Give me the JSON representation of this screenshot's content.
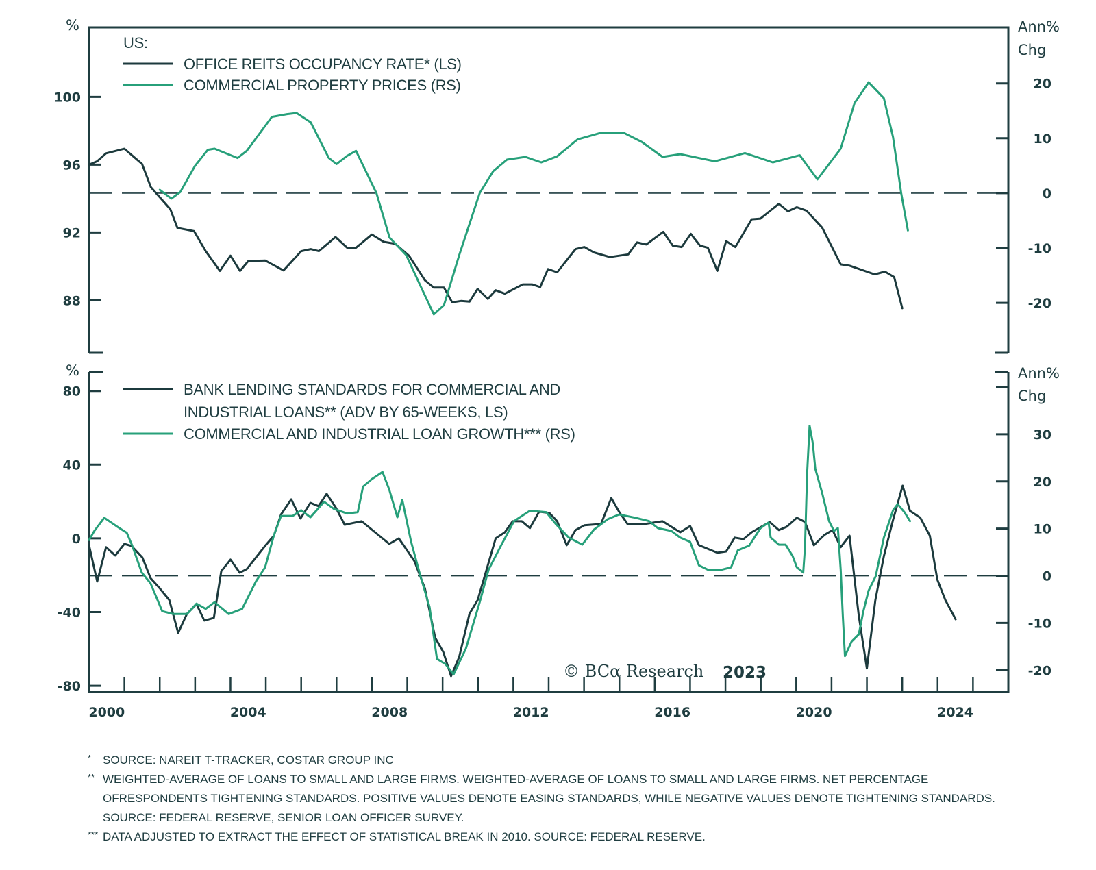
{
  "colors": {
    "dark": "#1c3a3d",
    "green": "#27a07a",
    "axis": "#1f3d40"
  },
  "watermark": {
    "text": "© BCα Research",
    "year": "2023"
  },
  "footnotes": [
    {
      "mark": "*",
      "text": "SOURCE: NAREIT T-TRACKER, COSTAR GROUP INC"
    },
    {
      "mark": "**",
      "text": "WEIGHTED-AVERAGE OF LOANS TO SMALL AND LARGE FIRMS. WEIGHTED-AVERAGE OF LOANS TO SMALL AND LARGE FIRMS. NET PERCENTAGE OFRESPONDENTS TIGHTENING STANDARDS. POSITIVE VALUES DENOTE EASING STANDARDS, WHILE NEGATIVE VALUES DENOTE TIGHTENING STANDARDS. SOURCE: FEDERAL RESERVE, SENIOR LOAN OFFICER SURVEY."
    },
    {
      "mark": "***",
      "text": "DATA ADJUSTED TO EXTRACT THE EFFECT OF STATISTICAL BREAK IN 2010. SOURCE: FEDERAL RESERVE."
    }
  ],
  "chart_data": [
    {
      "type": "line",
      "panel": "top",
      "title": "US:",
      "xlabel": "",
      "ylabel_left": "%",
      "ylabel_right": [
        "Ann%",
        "Chg"
      ],
      "xlim": [
        2000,
        2026
      ],
      "ylim_left": [
        84.9,
        104.1
      ],
      "ylim_right": [
        -29.1,
        30.2
      ],
      "yticks_left": [
        88,
        92,
        96,
        100
      ],
      "yticks_right": [
        -20,
        -10,
        0,
        10,
        20
      ],
      "reference_line_right": 0,
      "legend_position": "top-left",
      "series": [
        {
          "name": "OFFICE REITS OCCUPANCY RATE* (LS)",
          "axis": "left",
          "color": "dark",
          "x": [
            2000.0,
            2000.23,
            2000.48,
            2001.0,
            2001.5,
            2001.75,
            2002.3,
            2002.5,
            2002.97,
            2003.3,
            2003.7,
            2004.0,
            2004.27,
            2004.5,
            2004.98,
            2005.5,
            2006.0,
            2006.27,
            2006.5,
            2006.97,
            2007.3,
            2007.55,
            2008.0,
            2008.33,
            2008.66,
            2009.05,
            2009.5,
            2009.75,
            2010.04,
            2010.27,
            2010.52,
            2010.76,
            2010.99,
            2011.28,
            2011.5,
            2011.76,
            2012.27,
            2012.53,
            2012.76,
            2012.98,
            2013.24,
            2013.76,
            2014.01,
            2014.28,
            2014.73,
            2015.25,
            2015.5,
            2015.76,
            2016.24,
            2016.51,
            2016.76,
            2017.02,
            2017.28,
            2017.5,
            2017.77,
            2018.02,
            2018.28,
            2018.74,
            2018.99,
            2019.51,
            2019.77,
            2020.02,
            2020.29,
            2020.74,
            2021.26,
            2021.51,
            2022.22,
            2022.51,
            2022.77,
            2023.0
          ],
          "values": [
            96.0,
            96.2,
            96.67,
            96.94,
            96.04,
            94.67,
            93.37,
            92.27,
            92.08,
            90.9,
            89.73,
            90.63,
            89.73,
            90.31,
            90.35,
            89.76,
            90.9,
            91.02,
            90.9,
            91.73,
            91.1,
            91.1,
            91.88,
            91.45,
            91.33,
            90.63,
            89.18,
            88.75,
            88.75,
            87.88,
            87.96,
            87.92,
            88.67,
            88.08,
            88.59,
            88.39,
            88.94,
            88.94,
            88.78,
            89.84,
            89.65,
            91.02,
            91.14,
            90.82,
            90.55,
            90.71,
            91.41,
            91.29,
            92.04,
            91.22,
            91.14,
            91.92,
            91.22,
            91.1,
            89.73,
            91.49,
            91.14,
            92.78,
            92.82,
            93.69,
            93.25,
            93.49,
            93.29,
            92.27,
            90.12,
            90.04,
            89.53,
            89.69,
            89.37,
            87.53
          ]
        },
        {
          "name": "COMMERCIAL PROPERTY PRICES (RS)",
          "axis": "right",
          "color": "green",
          "x": [
            2002.0,
            2002.33,
            2002.58,
            2003.0,
            2003.36,
            2003.55,
            2004.2,
            2004.46,
            2005.17,
            2005.6,
            2005.87,
            2006.27,
            2006.78,
            2007.0,
            2007.3,
            2007.55,
            2008.13,
            2008.5,
            2008.97,
            2009.36,
            2009.75,
            2010.04,
            2010.47,
            2011.05,
            2011.43,
            2011.82,
            2012.34,
            2012.79,
            2013.24,
            2013.82,
            2014.48,
            2015.12,
            2015.64,
            2016.22,
            2016.72,
            2017.7,
            2018.55,
            2019.34,
            2020.1,
            2020.6,
            2021.26,
            2021.65,
            2022.05,
            2022.48,
            2022.74,
            2022.97,
            2023.16
          ],
          "values": [
            0.6,
            -1.0,
            0.2,
            5.0,
            7.9,
            8.1,
            6.4,
            7.7,
            13.9,
            14.4,
            14.6,
            12.9,
            6.4,
            5.3,
            6.8,
            7.7,
            0.0,
            -8.1,
            -11.3,
            -16.7,
            -22.1,
            -20.4,
            -11.3,
            0.0,
            4.0,
            6.1,
            6.6,
            5.6,
            6.7,
            9.8,
            11.0,
            11.0,
            9.3,
            6.6,
            7.1,
            5.8,
            7.3,
            5.6,
            6.9,
            2.5,
            8.1,
            16.4,
            20.2,
            17.3,
            10.2,
            0.0,
            -6.8
          ]
        }
      ]
    },
    {
      "type": "line",
      "panel": "bottom",
      "xlabel": "",
      "ylabel_left": "%",
      "ylabel_right": [
        "Ann%",
        "Chg"
      ],
      "xlim": [
        2000,
        2026
      ],
      "xticks": [
        2000,
        2004,
        2008,
        2012,
        2016,
        2020,
        2024
      ],
      "ylim_left": [
        -83.3,
        90.3
      ],
      "ylim_right": [
        -24.6,
        43.2
      ],
      "yticks_left": [
        -80,
        -40,
        0,
        40,
        80
      ],
      "yticks_right": [
        -20,
        -10,
        0,
        10,
        20,
        30
      ],
      "reference_line_right": 0,
      "legend_position": "top-left",
      "series": [
        {
          "name": "BANK LENDING STANDARDS FOR COMMERCIAL AND INDUSTRIAL LOANS** (ADV BY 65-WEEKS, LS)",
          "axis": "left",
          "color": "dark",
          "x": [
            2000.0,
            2000.23,
            2000.48,
            2000.74,
            2001.0,
            2001.2,
            2001.51,
            2001.74,
            2002.0,
            2002.27,
            2002.52,
            2002.77,
            2003.04,
            2003.26,
            2003.53,
            2003.74,
            2004.0,
            2004.26,
            2004.46,
            2004.98,
            2005.23,
            2005.43,
            2005.72,
            2005.98,
            2006.26,
            2006.49,
            2006.72,
            2006.98,
            2007.23,
            2007.71,
            2008.49,
            2008.76,
            2009.2,
            2009.5,
            2009.79,
            2010.02,
            2010.24,
            2010.47,
            2010.76,
            2010.99,
            2011.24,
            2011.5,
            2011.76,
            2011.98,
            2012.24,
            2012.47,
            2012.73,
            2013.02,
            2013.24,
            2013.51,
            2013.76,
            2014.01,
            2014.48,
            2014.77,
            2014.99,
            2015.23,
            2015.71,
            2016.22,
            2016.72,
            2017.0,
            2017.25,
            2017.77,
            2018.02,
            2018.26,
            2018.51,
            2018.74,
            2019.25,
            2019.51,
            2019.73,
            2020.02,
            2020.25,
            2020.5,
            2020.8,
            2021.03,
            2021.26,
            2021.51,
            2021.77,
            2022.0,
            2022.24,
            2022.48,
            2022.74,
            2023.01,
            2023.22,
            2023.51,
            2023.78,
            2023.99,
            2024.22,
            2024.51
          ],
          "values": [
            -3.7,
            -23.4,
            -4.8,
            -9.3,
            -3.0,
            -4.1,
            -10.4,
            -21.6,
            -27.1,
            -33.5,
            -51.3,
            -40.9,
            -35.7,
            -44.6,
            -43.1,
            -17.8,
            -11.5,
            -18.6,
            -16.7,
            -4.1,
            1.5,
            13.0,
            21.2,
            10.8,
            19.3,
            17.5,
            24.2,
            16.7,
            7.4,
            9.3,
            -3.0,
            0.0,
            -12.3,
            -27.1,
            -53.9,
            -61.7,
            -74.7,
            -64.3,
            -40.9,
            -33.5,
            -17.1,
            0.0,
            3.3,
            9.3,
            9.3,
            5.6,
            14.5,
            13.8,
            9.3,
            -3.7,
            4.5,
            7.1,
            7.8,
            21.9,
            14.5,
            7.8,
            7.8,
            9.3,
            3.3,
            6.7,
            -3.7,
            -7.8,
            -7.1,
            0.4,
            -0.4,
            3.3,
            8.9,
            4.5,
            6.3,
            11.2,
            8.9,
            -3.7,
            1.9,
            4.5,
            -4.8,
            1.5,
            -42.0,
            -70.6,
            -33.5,
            -9.7,
            10.0,
            28.6,
            14.9,
            11.2,
            1.5,
            -22.3,
            -33.5,
            -43.9
          ]
        },
        {
          "name": "COMMERCIAL AND INDUSTRIAL LOAN GROWTH*** (RS)",
          "axis": "right",
          "color": "green",
          "x": [
            2000.0,
            2000.15,
            2000.43,
            2000.78,
            2001.07,
            2001.22,
            2001.49,
            2001.74,
            2002.07,
            2002.38,
            2002.77,
            2003.04,
            2003.3,
            2003.55,
            2003.95,
            2004.33,
            2004.72,
            2004.98,
            2005.23,
            2005.43,
            2005.76,
            2006.0,
            2006.26,
            2006.65,
            2006.92,
            2007.3,
            2007.6,
            2007.75,
            2008.0,
            2008.3,
            2008.49,
            2008.72,
            2008.86,
            2009.11,
            2009.36,
            2009.63,
            2009.84,
            2010.08,
            2010.31,
            2010.66,
            2011.05,
            2011.3,
            2011.63,
            2012.02,
            2012.47,
            2012.93,
            2013.2,
            2013.57,
            2013.95,
            2014.28,
            2014.67,
            2014.99,
            2015.45,
            2015.84,
            2016.09,
            2016.47,
            2016.72,
            2017.0,
            2017.25,
            2017.5,
            2017.9,
            2018.16,
            2018.35,
            2018.67,
            2018.99,
            2019.22,
            2019.28,
            2019.51,
            2019.7,
            2019.9,
            2020.02,
            2020.2,
            2020.25,
            2020.31,
            2020.38,
            2020.47,
            2020.54,
            2020.74,
            2020.93,
            2021.07,
            2021.18,
            2021.26,
            2021.32,
            2021.38,
            2021.57,
            2021.77,
            2021.9,
            2022.05,
            2022.25,
            2022.48,
            2022.74,
            2022.87,
            2023.06,
            2023.22
          ],
          "values": [
            7.6,
            9.5,
            12.3,
            10.5,
            9.1,
            6.4,
            0.7,
            -1.6,
            -7.5,
            -8.1,
            -8.1,
            -5.9,
            -7.0,
            -5.6,
            -8.1,
            -7.0,
            -1.2,
            1.8,
            8.6,
            12.7,
            12.7,
            13.9,
            12.4,
            15.7,
            14.2,
            13.2,
            13.5,
            18.9,
            20.5,
            22.0,
            18.3,
            12.4,
            16.1,
            7.2,
            0.3,
            -6.6,
            -17.6,
            -18.7,
            -20.9,
            -15.4,
            -5.6,
            1.3,
            6.1,
            11.6,
            13.8,
            13.5,
            11.0,
            8.1,
            6.6,
            9.8,
            12.0,
            13.0,
            12.3,
            11.6,
            10.1,
            9.5,
            8.1,
            7.2,
            2.2,
            1.3,
            1.3,
            1.8,
            5.4,
            6.4,
            10.1,
            11.3,
            8.1,
            6.6,
            6.6,
            4.2,
            1.8,
            0.7,
            6.1,
            21.8,
            31.8,
            28.1,
            22.7,
            17.4,
            11.6,
            9.5,
            10.1,
            1.3,
            -8.5,
            -17.0,
            -13.9,
            -12.4,
            -7.5,
            -3.1,
            -0.1,
            8.1,
            13.9,
            15.2,
            13.5,
            11.6
          ]
        }
      ]
    }
  ]
}
